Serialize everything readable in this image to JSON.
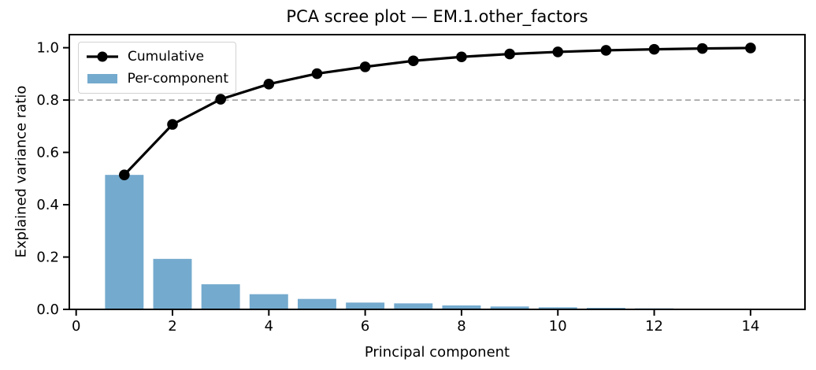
{
  "figure": {
    "background": "#ffffff"
  },
  "chart_data": {
    "type": "bar",
    "title": "PCA scree plot — EM.1.other_factors",
    "xlabel": "Principal component",
    "ylabel": "Explained variance ratio",
    "x": [
      1,
      2,
      3,
      4,
      5,
      6,
      7,
      8,
      9,
      10,
      11,
      12,
      13,
      14
    ],
    "series": [
      {
        "name": "Cumulative",
        "type": "line",
        "color": "#000000",
        "marker": "circle",
        "values": [
          0.514,
          0.707,
          0.803,
          0.861,
          0.901,
          0.927,
          0.95,
          0.965,
          0.976,
          0.984,
          0.99,
          0.994,
          0.997,
          0.999
        ]
      },
      {
        "name": "Per-component",
        "type": "bar",
        "color": "#74aace",
        "values": [
          0.514,
          0.193,
          0.096,
          0.058,
          0.04,
          0.026,
          0.023,
          0.015,
          0.011,
          0.008,
          0.006,
          0.004,
          0.003,
          0.002
        ]
      }
    ],
    "threshold_line": {
      "y": 0.8,
      "color": "#a6a6a6",
      "style": "dashed"
    },
    "x_ticks": {
      "values": [
        0,
        2,
        4,
        6,
        8,
        10,
        12,
        14
      ],
      "labels": [
        "0",
        "2",
        "4",
        "6",
        "8",
        "10",
        "12",
        "14"
      ]
    },
    "y_ticks": {
      "values": [
        0.0,
        0.2,
        0.4,
        0.6,
        0.8,
        1.0
      ],
      "labels": [
        "0.0",
        "0.2",
        "0.4",
        "0.6",
        "0.8",
        "1.0"
      ]
    },
    "xlim": [
      -0.142,
      15.13
    ],
    "ylim": [
      0,
      1.05
    ],
    "bar_width": 0.8,
    "grid": false,
    "legend": {
      "position": "upper left"
    },
    "axis_color": "#000000"
  }
}
